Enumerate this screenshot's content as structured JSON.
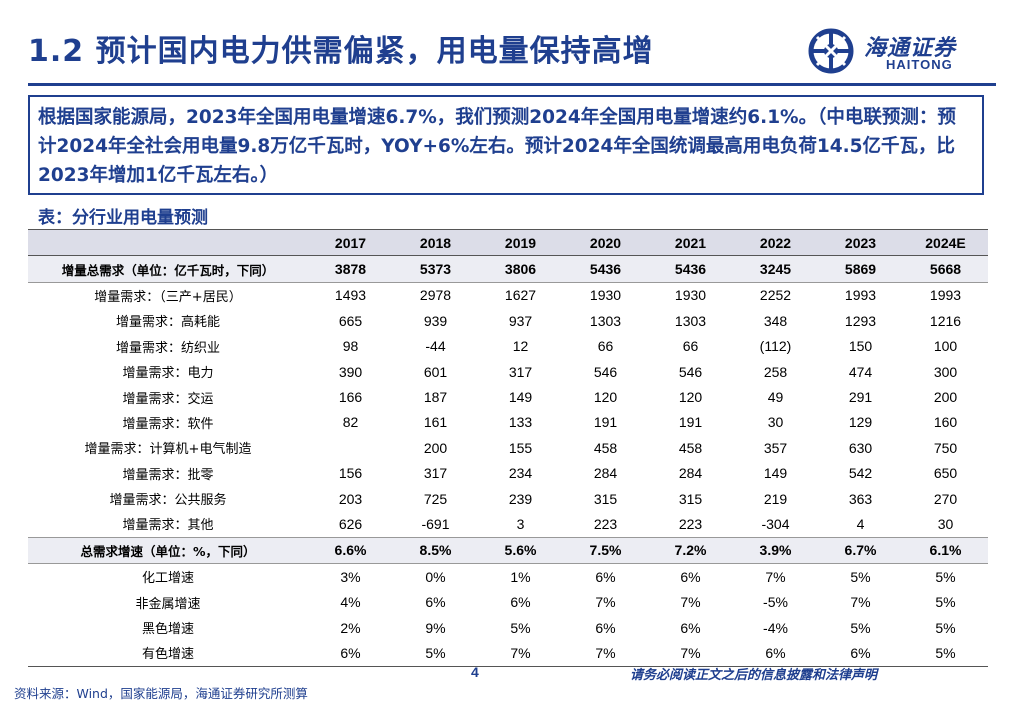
{
  "header": {
    "title": "1.2 预计国内电力供需偏紧，用电量保持高增",
    "logo_cn": "海通证券",
    "logo_en": "HAITONG",
    "brand_color": "#1f3f8f"
  },
  "note": "根据国家能源局，2023年全国用电量增速6.7%，我们预测2024年全国用电量增速约6.1%。（中电联预测：预计2024年全社会用电量9.8万亿千瓦时，YOY+6%左右。预计2024年全国统调最高用电负荷14.5亿千瓦，比2023年增加1亿千瓦左右。）",
  "table_caption": "表：分行业用电量预测",
  "table": {
    "columns": [
      "",
      "2017",
      "2018",
      "2019",
      "2020",
      "2021",
      "2022",
      "2023",
      "2024E"
    ],
    "rows": [
      {
        "label": "增量总需求（单位：亿千瓦时，下同）",
        "values": [
          "3878",
          "5373",
          "3806",
          "5436",
          "5436",
          "3245",
          "5869",
          "5668"
        ],
        "bold": true
      },
      {
        "label": "增量需求：（三产+居民）",
        "values": [
          "1493",
          "2978",
          "1627",
          "1930",
          "1930",
          "2252",
          "1993",
          "1993"
        ],
        "bold": false
      },
      {
        "label": "增量需求：高耗能",
        "values": [
          "665",
          "939",
          "937",
          "1303",
          "1303",
          "348",
          "1293",
          "1216"
        ],
        "bold": false
      },
      {
        "label": "增量需求：纺织业",
        "values": [
          "98",
          "-44",
          "12",
          "66",
          "66",
          "(112)",
          "150",
          "100"
        ],
        "bold": false
      },
      {
        "label": "增量需求：电力",
        "values": [
          "390",
          "601",
          "317",
          "546",
          "546",
          "258",
          "474",
          "300"
        ],
        "bold": false
      },
      {
        "label": "增量需求：交运",
        "values": [
          "166",
          "187",
          "149",
          "120",
          "120",
          "49",
          "291",
          "200"
        ],
        "bold": false
      },
      {
        "label": "增量需求：软件",
        "values": [
          "82",
          "161",
          "133",
          "191",
          "191",
          "30",
          "129",
          "160"
        ],
        "bold": false
      },
      {
        "label": "增量需求：计算机+电气制造",
        "values": [
          "",
          "200",
          "155",
          "458",
          "458",
          "357",
          "630",
          "750"
        ],
        "bold": false
      },
      {
        "label": "增量需求：批零",
        "values": [
          "156",
          "317",
          "234",
          "284",
          "284",
          "149",
          "542",
          "650"
        ],
        "bold": false
      },
      {
        "label": "增量需求：公共服务",
        "values": [
          "203",
          "725",
          "239",
          "315",
          "315",
          "219",
          "363",
          "270"
        ],
        "bold": false
      },
      {
        "label": "增量需求：其他",
        "values": [
          "626",
          "-691",
          "3",
          "223",
          "223",
          "-304",
          "4",
          "30"
        ],
        "bold": false
      },
      {
        "label": "总需求增速（单位：%，下同）",
        "values": [
          "6.6%",
          "8.5%",
          "5.6%",
          "7.5%",
          "7.2%",
          "3.9%",
          "6.7%",
          "6.1%"
        ],
        "bold": true
      },
      {
        "label": "化工增速",
        "values": [
          "3%",
          "0%",
          "1%",
          "6%",
          "6%",
          "7%",
          "5%",
          "5%"
        ],
        "bold": false
      },
      {
        "label": "非金属增速",
        "values": [
          "4%",
          "6%",
          "6%",
          "7%",
          "7%",
          "-5%",
          "7%",
          "5%"
        ],
        "bold": false
      },
      {
        "label": "黑色增速",
        "values": [
          "2%",
          "9%",
          "5%",
          "6%",
          "6%",
          "-4%",
          "5%",
          "5%"
        ],
        "bold": false
      },
      {
        "label": "有色增速",
        "values": [
          "6%",
          "5%",
          "7%",
          "7%",
          "7%",
          "6%",
          "6%",
          "5%"
        ],
        "bold": false
      }
    ]
  },
  "footer": {
    "page_number": "4",
    "disclaimer": "请务必阅读正文之后的信息披露和法律声明",
    "source": "资料来源：Wind，国家能源局，海通证券研究所测算"
  }
}
